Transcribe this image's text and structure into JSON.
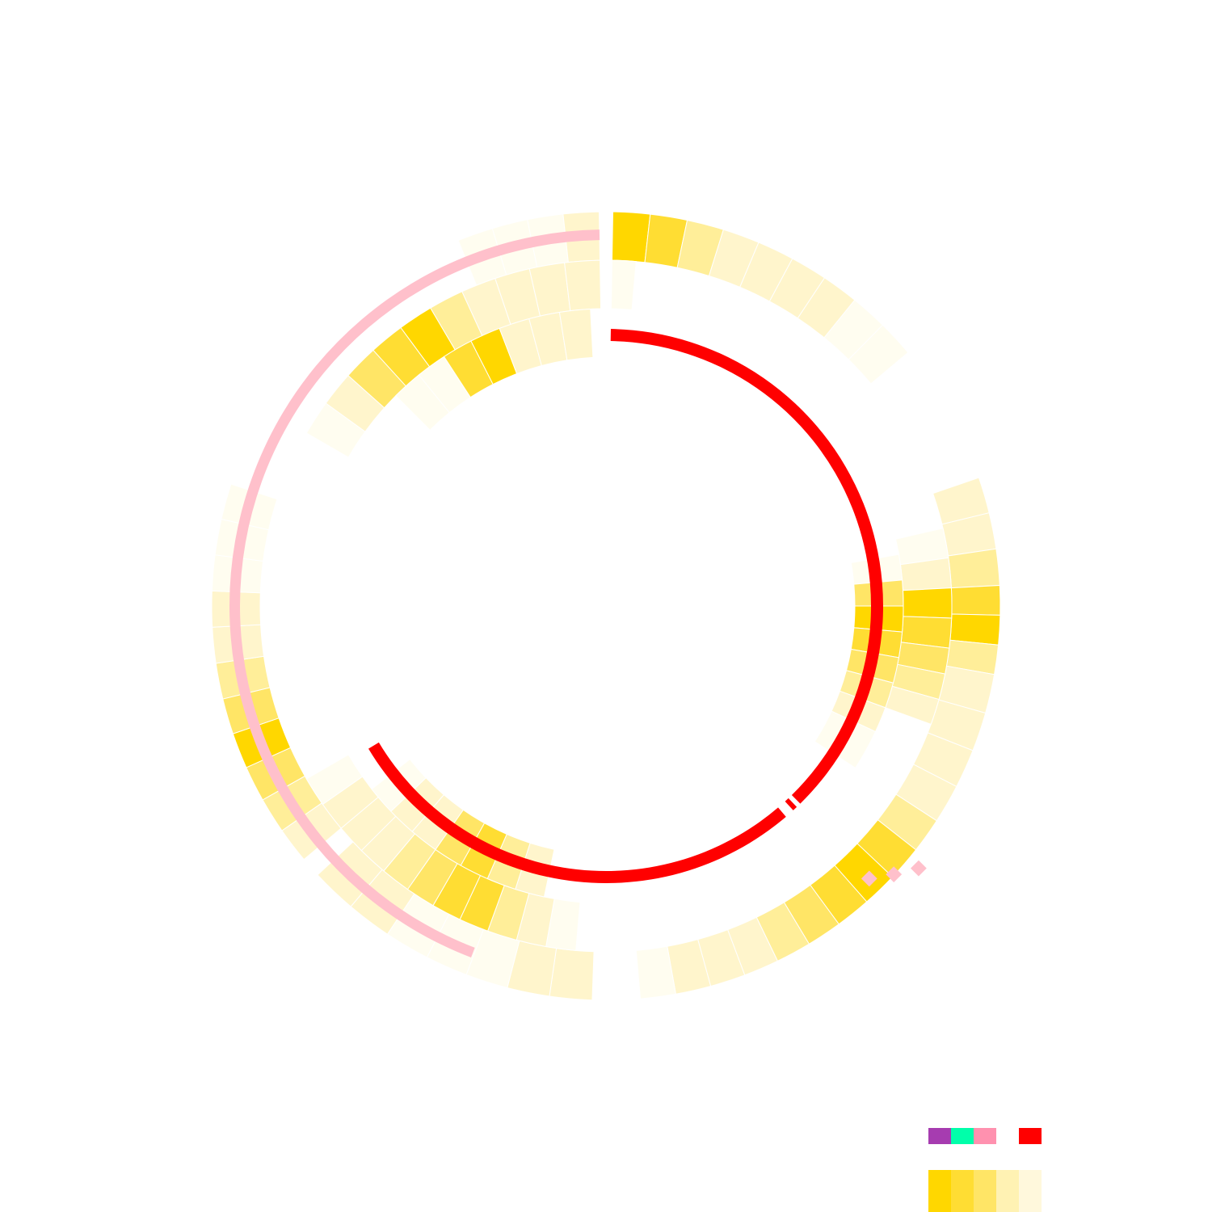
{
  "chart_data": {
    "type": "heatmap",
    "title": "",
    "grid": false,
    "legend_placement": "bottom-right",
    "heat_palette": [
      "#FFD700",
      "#FFDD33",
      "#FFE566",
      "#FFEE99",
      "#FFF5CC",
      "#FFFDF0"
    ],
    "legend": {
      "category_colors": [
        "#A63CB0",
        "#00FFAA",
        "#FF91AF",
        "#FFFFFF",
        "#FF0000"
      ],
      "heat_scale": [
        "#FFD700",
        "#FFDD33",
        "#FFE566",
        "#FFF2B3",
        "#FFF8DC"
      ]
    },
    "outer_track": {
      "sectors": [
        {
          "start_deg": 1,
          "end_deg": 50,
          "levels": [
            0,
            1,
            3,
            4,
            4,
            4,
            4,
            5,
            5
          ]
        },
        {
          "start_deg": 71,
          "end_deg": 87,
          "levels": [
            4,
            4,
            3
          ]
        },
        {
          "start_deg": 87,
          "end_deg": 100,
          "levels": [
            1,
            0,
            3
          ]
        },
        {
          "start_deg": 100,
          "end_deg": 123,
          "levels": [
            4,
            4,
            4,
            4
          ]
        },
        {
          "start_deg": 123,
          "end_deg": 175,
          "levels": [
            3,
            1,
            0,
            1,
            2,
            3,
            4,
            4,
            4,
            5
          ]
        },
        {
          "start_deg": 182,
          "end_deg": 207,
          "levels": [
            4,
            4,
            5,
            5
          ]
        },
        {
          "start_deg": 207,
          "end_deg": 227,
          "levels": [
            5,
            4,
            4
          ]
        },
        {
          "start_deg": 230,
          "end_deg": 288,
          "levels": [
            4,
            3,
            2,
            0,
            2,
            3,
            4,
            4,
            5,
            5,
            5
          ]
        },
        {
          "start_deg": 338,
          "end_deg": 359,
          "levels": [
            5,
            5,
            5,
            4
          ]
        }
      ]
    },
    "middle_track": {
      "sectors": [
        {
          "start_deg": 1,
          "end_deg": 5,
          "levels": [
            5
          ]
        },
        {
          "start_deg": 77,
          "end_deg": 97,
          "levels": [
            5,
            4,
            0,
            1
          ]
        },
        {
          "start_deg": 97,
          "end_deg": 110,
          "levels": [
            2,
            3,
            4
          ]
        },
        {
          "start_deg": 185,
          "end_deg": 225,
          "levels": [
            5,
            4,
            3,
            1,
            1,
            2,
            3,
            4
          ]
        },
        {
          "start_deg": 225,
          "end_deg": 240,
          "levels": [
            4,
            4,
            5
          ]
        },
        {
          "start_deg": 300,
          "end_deg": 359,
          "levels": [
            5,
            4,
            2,
            1,
            0,
            3,
            4,
            4,
            4,
            4
          ]
        }
      ]
    },
    "inner_track": {
      "sectors": [
        {
          "start_deg": 80,
          "end_deg": 115,
          "levels": [
            5,
            2,
            0,
            1,
            2,
            3,
            4
          ]
        },
        {
          "start_deg": 115,
          "end_deg": 123,
          "levels": [
            5
          ]
        },
        {
          "start_deg": 192,
          "end_deg": 215,
          "levels": [
            4,
            3,
            1,
            2
          ]
        },
        {
          "start_deg": 215,
          "end_deg": 232,
          "levels": [
            4,
            4,
            5
          ]
        },
        {
          "start_deg": 315,
          "end_deg": 357,
          "levels": [
            5,
            5,
            1,
            0,
            4,
            4,
            4
          ]
        }
      ]
    },
    "pink_arc": {
      "color": "#FFC0CB",
      "start_deg": 201,
      "end_deg": 359
    },
    "red_arc": {
      "color": "#FF0000",
      "start_deg": 1,
      "end_deg": 239,
      "gaps_deg": [
        [
          135.5,
          136.5
        ],
        [
          137.5,
          139.5
        ]
      ]
    },
    "pink_markers": [
      {
        "angle_deg": 130
      },
      {
        "angle_deg": 133
      },
      {
        "angle_deg": 136
      }
    ]
  }
}
